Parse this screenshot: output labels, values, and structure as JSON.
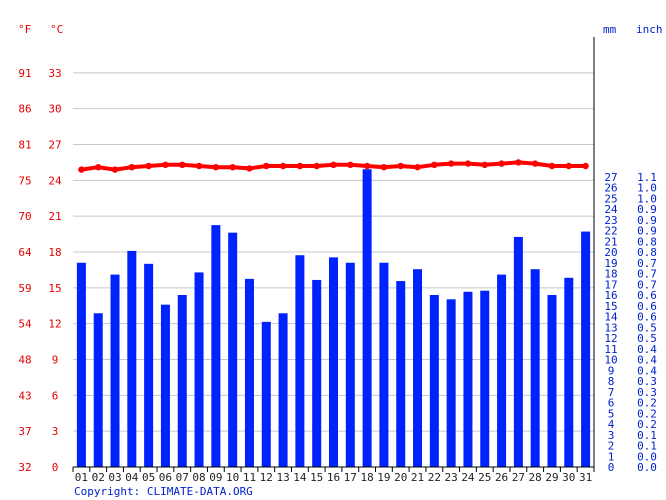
{
  "chart_data": {
    "type": "bar+line",
    "copyright": "Copyright: CLIMATE-DATA.ORG",
    "left_axis": {
      "unit_f": "°F",
      "unit_c": "°C",
      "celsius_ticks": [
        0,
        3,
        6,
        9,
        12,
        15,
        18,
        21,
        24,
        27,
        30,
        33
      ],
      "fahrenheit_ticks": [
        32,
        37,
        43,
        48,
        54,
        59,
        64,
        70,
        75,
        81,
        86,
        91
      ],
      "ylim_c": [
        0,
        36
      ]
    },
    "right_axis": {
      "unit_mm": "mm",
      "unit_inch": "inch",
      "mm_ticks": [
        0,
        1,
        2,
        3,
        4,
        5,
        6,
        7,
        8,
        9,
        10,
        11,
        12,
        13,
        14,
        15,
        16,
        17,
        18,
        19,
        20,
        21,
        22,
        23,
        24,
        25,
        26,
        27
      ],
      "inch_ticks": [
        "0.0",
        "0.0",
        "0.1",
        "0.1",
        "0.2",
        "0.2",
        "0.2",
        "0.3",
        "0.3",
        "0.4",
        "0.4",
        "0.4",
        "0.5",
        "0.5",
        "0.6",
        "0.6",
        "0.6",
        "0.7",
        "0.7",
        "0.7",
        "0.8",
        "0.8",
        "0.9",
        "0.9",
        "0.9",
        "1.0",
        "1.0",
        "1.1"
      ],
      "ylim_mm": [
        0,
        40
      ]
    },
    "categories": [
      "01",
      "02",
      "03",
      "04",
      "05",
      "06",
      "07",
      "08",
      "09",
      "10",
      "11",
      "12",
      "13",
      "14",
      "15",
      "16",
      "17",
      "18",
      "19",
      "20",
      "21",
      "22",
      "23",
      "24",
      "25",
      "26",
      "27",
      "28",
      "29",
      "30",
      "31"
    ],
    "series": [
      {
        "type": "bar",
        "color": "#0022ff",
        "values": [
          19.0,
          14.3,
          17.9,
          20.1,
          18.9,
          15.1,
          16.0,
          18.1,
          22.5,
          21.8,
          17.5,
          13.5,
          14.3,
          19.7,
          17.4,
          19.5,
          19.0,
          27.7,
          19.0,
          17.3,
          18.4,
          16.0,
          15.6,
          16.3,
          16.4,
          17.9,
          21.4,
          18.4,
          16.0,
          17.6,
          21.9
        ]
      },
      {
        "type": "line",
        "color": "#ff0000",
        "values": [
          24.9,
          25.1,
          24.9,
          25.1,
          25.2,
          25.3,
          25.3,
          25.2,
          25.1,
          25.1,
          25.0,
          25.2,
          25.2,
          25.2,
          25.2,
          25.3,
          25.3,
          25.2,
          25.1,
          25.2,
          25.1,
          25.3,
          25.4,
          25.4,
          25.3,
          25.4,
          25.5,
          25.4,
          25.2,
          25.2,
          25.2
        ]
      }
    ],
    "grid": true,
    "legend": "none"
  }
}
